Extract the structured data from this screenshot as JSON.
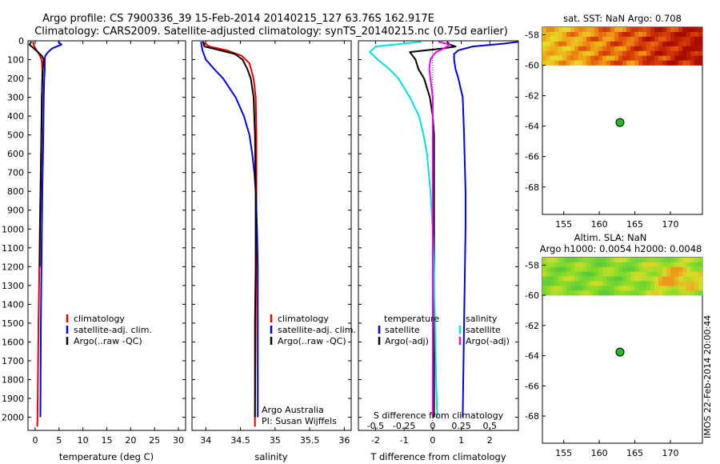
{
  "title_line1": "Argo profile: CS 7900336_39 15-Feb-2014 20140215_127 63.76S 162.917E",
  "title_line2": "Climatology: CARS2009. Satellite-adjusted climatology: synTS_20140215.nc (0.75d earlier)",
  "side_stamp": "IMOS 22-Feb-2014 20:00:44",
  "colors": {
    "climatology": "#e00000",
    "satellite": "#0000dd",
    "argo": "#000000",
    "satellite_s": "#00e0e0",
    "argo_adj_s": "#ee00ee",
    "marker": "#22bb22"
  },
  "chart_data": [
    {
      "id": "temperature",
      "type": "line",
      "xlabel": "temperature (deg C)",
      "xlim": [
        -1.5,
        31.5
      ],
      "xticks": [
        0,
        5,
        10,
        15,
        20,
        25,
        30
      ],
      "ylim": [
        0,
        2070
      ],
      "yticks": [
        0,
        100,
        200,
        300,
        400,
        500,
        600,
        700,
        800,
        900,
        1000,
        1100,
        1200,
        1300,
        1400,
        1500,
        1600,
        1700,
        1800,
        1900,
        2000
      ],
      "legend": [
        "climatology",
        "satellite-adj. clim.",
        "Argo(..raw -QC)"
      ],
      "series": [
        {
          "name": "climatology",
          "color": "#e00000",
          "depth": [
            5,
            30,
            50,
            70,
            90,
            110,
            150,
            200,
            300,
            500,
            800,
            1000,
            1500,
            2000,
            2050
          ],
          "values": [
            -0.5,
            -0.2,
            0.3,
            0.8,
            1.2,
            1.4,
            1.5,
            1.5,
            1.4,
            1.3,
            1.1,
            1.0,
            0.7,
            0.5,
            0.45
          ]
        },
        {
          "name": "satellite-adj. clim.",
          "color": "#0000dd",
          "depth": [
            5,
            20,
            40,
            60,
            80,
            100,
            150,
            200,
            300,
            500,
            800,
            1000,
            1500,
            2000
          ],
          "values": [
            4.8,
            5.5,
            3.6,
            2.7,
            2.1,
            2.0,
            2.0,
            1.9,
            1.8,
            1.7,
            1.5,
            1.4,
            1.2,
            1.1
          ]
        },
        {
          "name": "Argo(..raw -QC)",
          "color": "#000000",
          "depth": [
            5,
            20,
            40,
            60,
            80,
            100,
            150,
            200,
            300,
            500,
            800,
            1000,
            1200
          ],
          "values": [
            -0.8,
            -1.2,
            -0.3,
            0.6,
            1.4,
            1.8,
            1.6,
            1.5,
            1.4,
            1.3,
            1.15,
            1.0,
            0.95
          ]
        }
      ]
    },
    {
      "id": "salinity",
      "type": "line",
      "xlabel": "salinity",
      "xlim": [
        33.8,
        36.1
      ],
      "xticks": [
        34,
        34.5,
        35,
        35.5,
        36
      ],
      "ylim": [
        0,
        2070
      ],
      "legend": [
        "climatology",
        "satellite-adj. clim.",
        "Argo(..raw -QC)"
      ],
      "annotation": [
        "Argo Australia",
        "PI: Susan Wijffels"
      ],
      "series": [
        {
          "name": "climatology",
          "color": "#e00000",
          "depth": [
            5,
            30,
            50,
            80,
            120,
            200,
            300,
            500,
            800,
            1000,
            1500,
            2000,
            2050
          ],
          "values": [
            33.95,
            34.05,
            34.3,
            34.52,
            34.63,
            34.69,
            34.72,
            34.73,
            34.73,
            34.73,
            34.72,
            34.71,
            34.71
          ]
        },
        {
          "name": "satellite-adj. clim.",
          "color": "#0000dd",
          "depth": [
            5,
            50,
            100,
            150,
            200,
            300,
            400,
            500,
            600,
            700,
            800,
            900,
            1000,
            1200,
            1500,
            1900,
            2000
          ],
          "values": [
            33.93,
            33.95,
            34.0,
            34.12,
            34.25,
            34.43,
            34.55,
            34.63,
            34.67,
            34.7,
            34.72,
            34.73,
            34.74,
            34.75,
            34.75,
            34.75,
            34.75
          ]
        },
        {
          "name": "Argo(..raw -QC)",
          "color": "#000000",
          "depth": [
            5,
            30,
            50,
            70,
            100,
            150,
            200,
            300,
            500,
            800,
            1000,
            1200,
            1500,
            2000
          ],
          "values": [
            33.96,
            33.98,
            34.2,
            34.42,
            34.53,
            34.6,
            34.65,
            34.69,
            34.71,
            34.72,
            34.72,
            34.72,
            34.71,
            34.71
          ]
        }
      ]
    },
    {
      "id": "difference",
      "type": "line",
      "xlabel": "T difference from climatology",
      "x2label": "S difference from climatology",
      "xlim": [
        -2.6,
        3.0
      ],
      "xticks": [
        -2,
        -1,
        0,
        1,
        2
      ],
      "s_xticks": [
        -0.5,
        -0.25,
        0,
        0.25,
        0.5
      ],
      "s_scale": 4,
      "ylim": [
        0,
        2070
      ],
      "legend_temperature_title": "temperature",
      "legend_salinity_title": "salinity",
      "legend_temperature": [
        "satellite",
        "Argo(-adj)"
      ],
      "legend_salinity": [
        "satellite",
        "Argo(-adj)"
      ],
      "series": [
        {
          "name": "T satellite",
          "color": "#0000dd",
          "depth": [
            5,
            15,
            30,
            50,
            70,
            100,
            150,
            200,
            300,
            500,
            800,
            1000,
            1500,
            2000
          ],
          "values": [
            3.0,
            2.5,
            1.4,
            0.9,
            0.75,
            0.75,
            0.8,
            0.9,
            1.05,
            1.1,
            1.15,
            1.15,
            1.1,
            1.05
          ]
        },
        {
          "name": "T Argo(-adj)",
          "color": "#000000",
          "depth": [
            5,
            20,
            30,
            40,
            60,
            80,
            100,
            150,
            200,
            250,
            300,
            400,
            500,
            700,
            1000,
            1500,
            2000
          ],
          "values": [
            0.5,
            0.6,
            0.8,
            0.4,
            -0.8,
            -0.7,
            -0.6,
            -0.5,
            -0.3,
            -0.2,
            -0.1,
            0.0,
            0.05,
            0.05,
            0.05,
            0.05,
            0.05
          ]
        },
        {
          "name": "S satellite",
          "color": "#00e0e0",
          "depth": [
            5,
            30,
            60,
            100,
            150,
            200,
            300,
            400,
            500,
            600,
            800,
            1000,
            1200,
            1500,
            1800,
            2000
          ],
          "values": [
            -0.1,
            -0.5,
            -0.55,
            -0.48,
            -0.38,
            -0.3,
            -0.2,
            -0.12,
            -0.08,
            -0.05,
            -0.02,
            0.0,
            0.01,
            0.02,
            0.03,
            0.04
          ]
        },
        {
          "name": "S Argo(-adj)",
          "color": "#ee00ee",
          "depth": [
            5,
            20,
            40,
            60,
            80,
            100,
            150,
            200,
            300,
            500,
            800,
            1000,
            1500,
            2000
          ],
          "values": [
            0.05,
            0.15,
            0.1,
            0.03,
            0.0,
            -0.02,
            -0.03,
            -0.02,
            0.0,
            0.0,
            0.0,
            0.0,
            0.0,
            0.0
          ]
        }
      ]
    },
    {
      "id": "sst_map",
      "type": "heatmap",
      "title": "sat. SST: NaN Argo: 0.708",
      "xlim": [
        152,
        174.5
      ],
      "xticks": [
        155,
        160,
        165,
        170
      ],
      "ylim": [
        -69.8,
        -57.5
      ],
      "yticks": [
        -58,
        -60,
        -62,
        -64,
        -66,
        -68
      ],
      "data_lat_range": [
        -57.5,
        -60.0
      ],
      "argo_position": [
        162.917,
        -63.76
      ]
    },
    {
      "id": "sla_map",
      "type": "heatmap",
      "title": "Altim. SLA: NaN",
      "subtitle": "Argo h1000: 0.0054 h2000: 0.0048",
      "xlim": [
        152,
        174.5
      ],
      "xticks": [
        155,
        160,
        165,
        170
      ],
      "ylim": [
        -69.8,
        -57.5
      ],
      "yticks": [
        -58,
        -60,
        -62,
        -64,
        -66,
        -68
      ],
      "data_lat_range": [
        -57.5,
        -60.0
      ],
      "argo_position": [
        162.917,
        -63.76
      ]
    }
  ]
}
